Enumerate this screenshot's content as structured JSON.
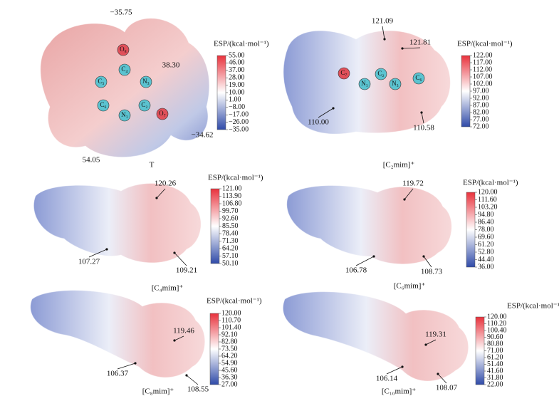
{
  "panels": [
    {
      "label": "T",
      "colorbar": {
        "title": "ESP/(kcal·mol⁻¹)",
        "ticks": [
          "55.00",
          "46.00",
          "37.00",
          "28.00",
          "19.00",
          "10.00",
          "1.00",
          "−8.00",
          "−17.00",
          "−26.00",
          "−35.00"
        ]
      },
      "annotations": [
        "−35.75",
        "38.30",
        "−34.62",
        "54.05"
      ],
      "atoms": [
        "O₈",
        "C₄",
        "C₅",
        "N₃",
        "C₆",
        "C₂",
        "N₁",
        "O₇"
      ]
    },
    {
      "label": "[C₂mim]⁺",
      "colorbar": {
        "title": "ESP/(kcal·mol⁻¹)",
        "ticks": [
          "122.00",
          "117.00",
          "112.00",
          "107.00",
          "102.00",
          "97.00",
          "92.00",
          "87.00",
          "82.00",
          "77.00",
          "72.00"
        ]
      },
      "annotations": [
        "121.09",
        "121.81",
        "110.00",
        "110.58"
      ],
      "atoms": [
        "C₇",
        "N₁",
        "C₂",
        "N₃",
        "C₆"
      ]
    },
    {
      "label": "[C₄mim]⁺",
      "colorbar": {
        "title": "ESP/(kcal·mol⁻¹)",
        "ticks": [
          "121.00",
          "113.90",
          "106.80",
          "99.70",
          "92.60",
          "85.50",
          "78.40",
          "71.30",
          "64.20",
          "57.10",
          "50.10"
        ]
      },
      "annotations": [
        "120.26",
        "107.27",
        "109.21"
      ]
    },
    {
      "label": "[C₆mim]⁺",
      "colorbar": {
        "title": "ESP/(kcal·mol⁻¹)",
        "ticks": [
          "120.00",
          "111.60",
          "103.20",
          "94.80",
          "86.40",
          "78.00",
          "69.60",
          "61.20",
          "52.80",
          "44.40",
          "36.00"
        ]
      },
      "annotations": [
        "119.72",
        "106.78",
        "108.73"
      ]
    },
    {
      "label": "[C₈mim]⁺",
      "colorbar": {
        "title": "ESP/(kcal·mol⁻¹)",
        "ticks": [
          "120.00",
          "110.70",
          "101.40",
          "92.10",
          "82.80",
          "73.50",
          "64.20",
          "54.90",
          "45.60",
          "36.30",
          "27.00"
        ]
      },
      "annotations": [
        "119.46",
        "106.37",
        "108.55"
      ]
    },
    {
      "label": "[C₁₀mim]⁺",
      "colorbar": {
        "title": "ESP/(kcal·mol⁻¹)",
        "ticks": [
          "120.00",
          "110.20",
          "100.40",
          "90.60",
          "80.80",
          "71.00",
          "61.20",
          "51.40",
          "41.60",
          "31.80",
          "22.00"
        ]
      },
      "annotations": [
        "119.31",
        "106.14",
        "108.07"
      ]
    }
  ]
}
